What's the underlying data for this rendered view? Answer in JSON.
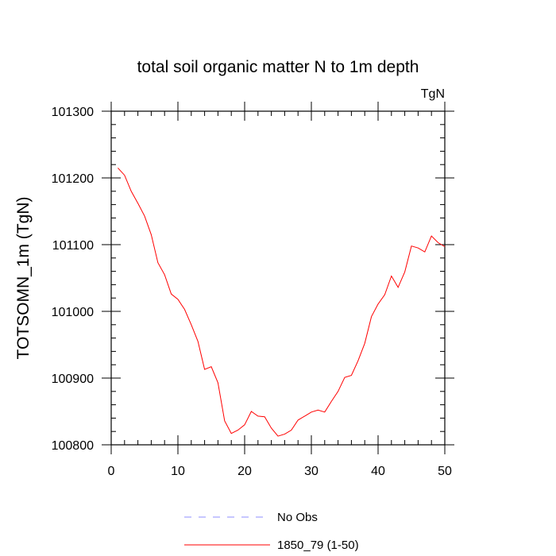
{
  "chart_data": {
    "type": "line",
    "title": "total soil organic matter N to 1m depth",
    "units": "TgN",
    "ylabel": "TOTSOMN_1m  (TgN)",
    "xlabel": "",
    "xlim": [
      0,
      50
    ],
    "ylim": [
      100800,
      101300
    ],
    "x_ticks": [
      0,
      10,
      20,
      30,
      40,
      50
    ],
    "y_ticks": [
      100800,
      100900,
      101000,
      101100,
      101200,
      101300
    ],
    "x_minor_step": 2,
    "y_minor_step": 20,
    "series": [
      {
        "name": "1850_79 (1-50)",
        "color": "#ff0000",
        "style": "solid",
        "x": [
          1,
          2,
          3,
          4,
          5,
          6,
          7,
          8,
          9,
          10,
          11,
          12,
          13,
          14,
          15,
          16,
          17,
          18,
          19,
          20,
          21,
          22,
          23,
          24,
          25,
          26,
          27,
          28,
          29,
          30,
          31,
          32,
          33,
          34,
          35,
          36,
          37,
          38,
          39,
          40,
          41,
          42,
          43,
          44,
          45,
          46,
          47,
          48,
          49,
          50
        ],
        "values": [
          101215,
          101204,
          101180,
          101162,
          101143,
          101115,
          101073,
          101055,
          101026,
          101018,
          101003,
          100980,
          100955,
          100913,
          100917,
          100893,
          100836,
          100817,
          100822,
          100830,
          100850,
          100843,
          100842,
          100825,
          100813,
          100816,
          100822,
          100837,
          100843,
          100849,
          100852,
          100849,
          100865,
          100880,
          100901,
          100904,
          100926,
          100952,
          100992,
          101011,
          101025,
          101053,
          101036,
          101059,
          101098,
          101095,
          101089,
          101113,
          101103,
          101097
        ]
      },
      {
        "name": "No Obs",
        "color": "#8f8fff",
        "style": "dashed",
        "x": [],
        "values": []
      }
    ],
    "legend": [
      "No Obs",
      "1850_79 (1-50)"
    ],
    "legend_position": "bottom-center",
    "grid": false
  }
}
